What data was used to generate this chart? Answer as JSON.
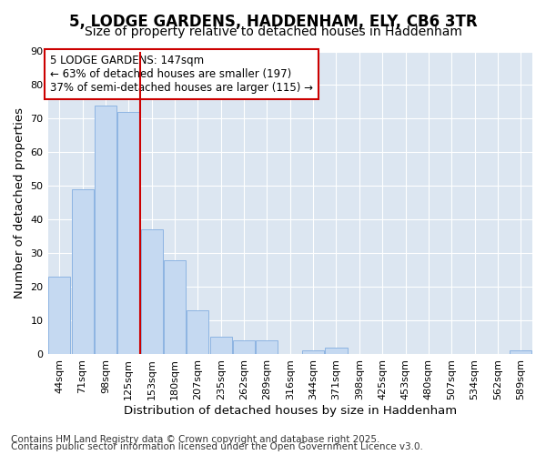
{
  "title_line1": "5, LODGE GARDENS, HADDENHAM, ELY, CB6 3TR",
  "title_line2": "Size of property relative to detached houses in Haddenham",
  "xlabel": "Distribution of detached houses by size in Haddenham",
  "ylabel": "Number of detached properties",
  "categories": [
    "44sqm",
    "71sqm",
    "98sqm",
    "125sqm",
    "153sqm",
    "180sqm",
    "207sqm",
    "235sqm",
    "262sqm",
    "289sqm",
    "316sqm",
    "344sqm",
    "371sqm",
    "398sqm",
    "425sqm",
    "453sqm",
    "480sqm",
    "507sqm",
    "534sqm",
    "562sqm",
    "589sqm"
  ],
  "values": [
    23,
    49,
    74,
    72,
    37,
    28,
    13,
    5,
    4,
    4,
    0,
    1,
    2,
    0,
    0,
    0,
    0,
    0,
    0,
    0,
    1
  ],
  "bar_color": "#c5d9f1",
  "bar_edge_color": "#8db4e2",
  "figure_bg_color": "#ffffff",
  "plot_bg_color": "#dce6f1",
  "grid_color": "#ffffff",
  "vline_x_index": 4,
  "vline_color": "#cc0000",
  "annotation_text_line1": "5 LODGE GARDENS: 147sqm",
  "annotation_text_line2": "← 63% of detached houses are smaller (197)",
  "annotation_text_line3": "37% of semi-detached houses are larger (115) →",
  "annotation_box_edgecolor": "#cc0000",
  "annotation_bg_color": "#ffffff",
  "ylim": [
    0,
    90
  ],
  "yticks": [
    0,
    10,
    20,
    30,
    40,
    50,
    60,
    70,
    80,
    90
  ],
  "footnote_line1": "Contains HM Land Registry data © Crown copyright and database right 2025.",
  "footnote_line2": "Contains public sector information licensed under the Open Government Licence v3.0.",
  "title_fontsize": 12,
  "subtitle_fontsize": 10,
  "axis_label_fontsize": 9.5,
  "tick_fontsize": 8,
  "annotation_fontsize": 8.5,
  "footnote_fontsize": 7.5
}
